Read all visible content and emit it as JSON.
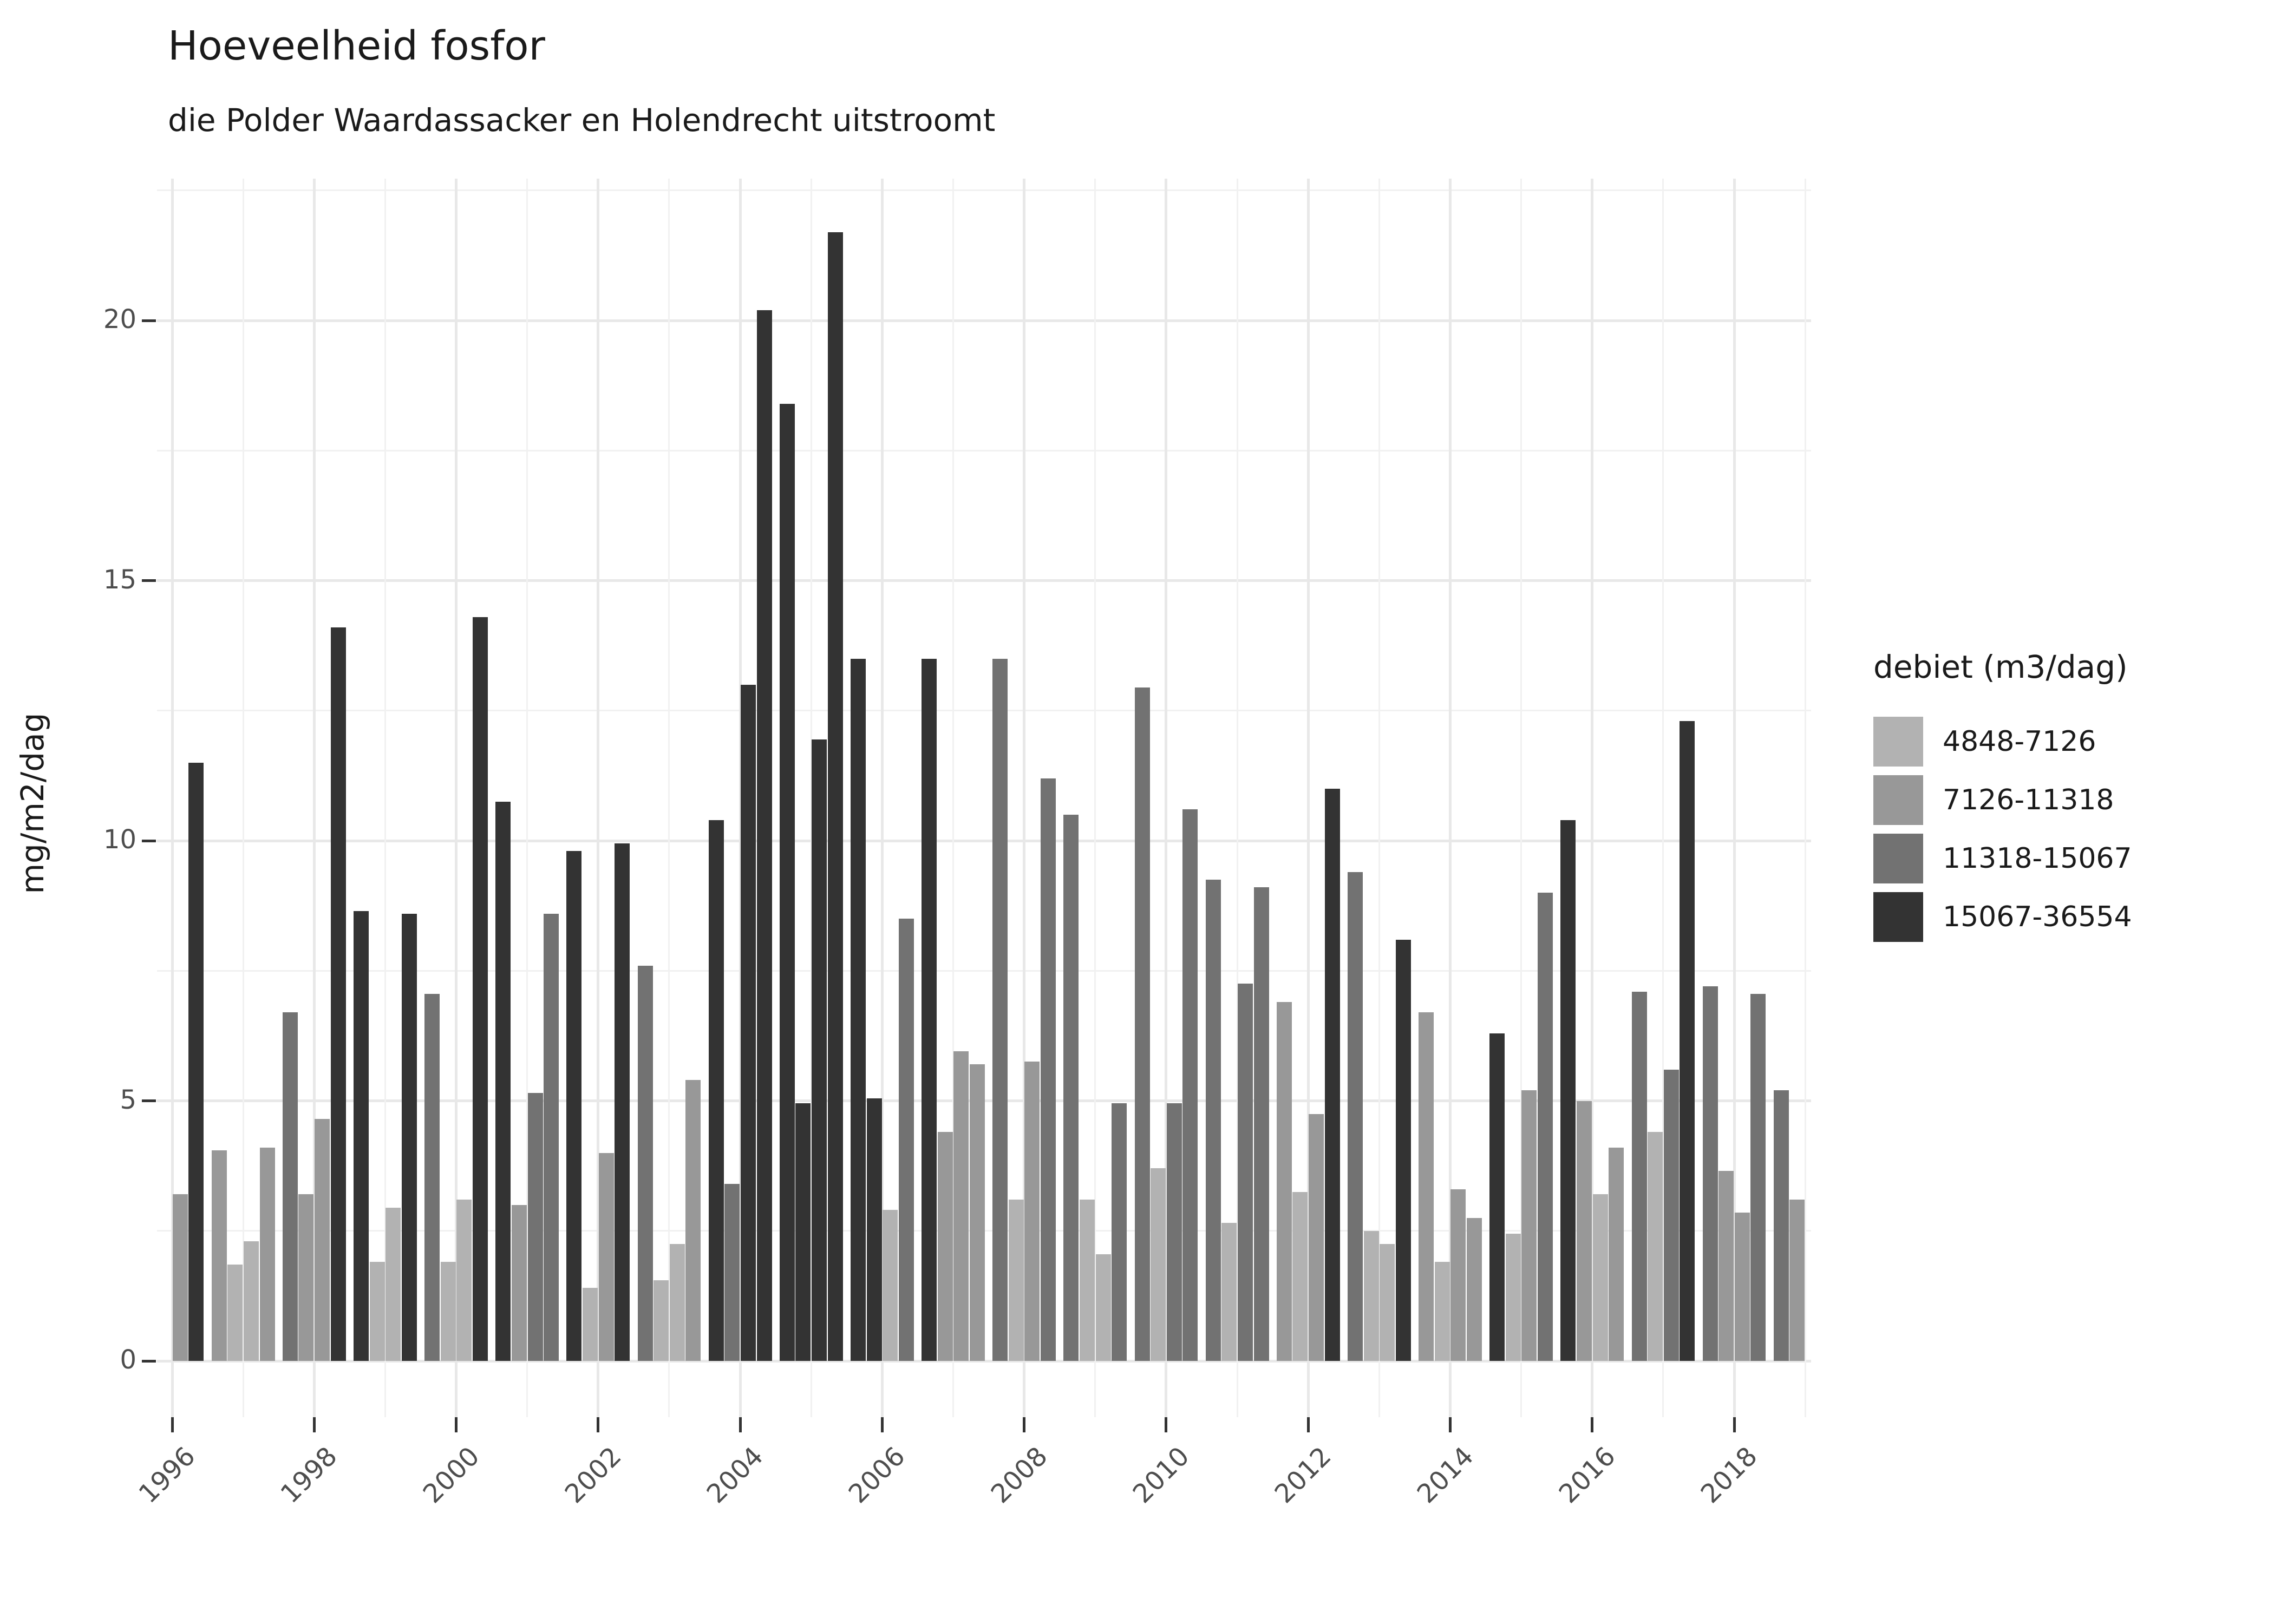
{
  "title": "Hoeveelheid fosfor",
  "subtitle": "die Polder Waardassacker en Holendrecht uitstroomt",
  "y_axis": {
    "label": "mg/m2/dag",
    "ticks": [
      0,
      5,
      10,
      15,
      20
    ],
    "minor_ticks": [
      2.5,
      7.5,
      12.5,
      17.5,
      22.5
    ],
    "range": [
      -1.1,
      22.8
    ]
  },
  "x_axis": {
    "tick_labels": [
      "1996",
      "1998",
      "2000",
      "2002",
      "2004",
      "2006",
      "2008",
      "2010",
      "2012",
      "2014",
      "2016",
      "2018"
    ],
    "tick_years": [
      1996,
      1998,
      2000,
      2002,
      2004,
      2006,
      2008,
      2010,
      2012,
      2014,
      2016,
      2018
    ],
    "minor_years": [
      1997,
      1999,
      2001,
      2003,
      2005,
      2007,
      2009,
      2011,
      2013,
      2015,
      2017,
      2019
    ]
  },
  "legend": {
    "title": "debiet (m3/dag)",
    "items": [
      {
        "label": "4848-7126",
        "color": "#b2b2b2"
      },
      {
        "label": "7126-11318",
        "color": "#989898"
      },
      {
        "label": "11318-15067",
        "color": "#727272"
      },
      {
        "label": "15067-36554",
        "color": "#333333"
      }
    ]
  },
  "chart_data": {
    "type": "bar",
    "title": "Hoeveelheid fosfor",
    "subtitle": "die Polder Waardassacker en Holendrecht uitstroomt",
    "xlabel": "",
    "ylabel": "mg/m2/dag",
    "ylim": [
      0,
      22.8
    ],
    "grid": true,
    "legend_position": "right",
    "group_by": "quarter (4 bars per year)",
    "d_levels": [
      "4848-7126",
      "7126-11318",
      "11318-15067",
      "15067-36554"
    ],
    "bars": [
      {
        "y": 1996,
        "q": 3,
        "v": 3.2,
        "d": 2
      },
      {
        "y": 1996,
        "q": 4,
        "v": 11.5,
        "d": 4
      },
      {
        "y": 1997,
        "q": 1,
        "v": 4.05,
        "d": 2
      },
      {
        "y": 1997,
        "q": 2,
        "v": 1.85,
        "d": 1
      },
      {
        "y": 1997,
        "q": 3,
        "v": 2.3,
        "d": 1
      },
      {
        "y": 1997,
        "q": 4,
        "v": 4.1,
        "d": 2
      },
      {
        "y": 1998,
        "q": 1,
        "v": 6.7,
        "d": 3
      },
      {
        "y": 1998,
        "q": 2,
        "v": 3.2,
        "d": 2
      },
      {
        "y": 1998,
        "q": 3,
        "v": 4.65,
        "d": 2
      },
      {
        "y": 1998,
        "q": 4,
        "v": 14.1,
        "d": 4
      },
      {
        "y": 1999,
        "q": 1,
        "v": 8.65,
        "d": 4
      },
      {
        "y": 1999,
        "q": 2,
        "v": 1.9,
        "d": 1
      },
      {
        "y": 1999,
        "q": 3,
        "v": 2.95,
        "d": 1
      },
      {
        "y": 1999,
        "q": 4,
        "v": 8.6,
        "d": 4
      },
      {
        "y": 2000,
        "q": 1,
        "v": 7.05,
        "d": 3
      },
      {
        "y": 2000,
        "q": 2,
        "v": 1.9,
        "d": 1
      },
      {
        "y": 2000,
        "q": 3,
        "v": 3.1,
        "d": 1
      },
      {
        "y": 2000,
        "q": 4,
        "v": 14.3,
        "d": 4
      },
      {
        "y": 2001,
        "q": 1,
        "v": 10.75,
        "d": 4
      },
      {
        "y": 2001,
        "q": 2,
        "v": 3.0,
        "d": 2
      },
      {
        "y": 2001,
        "q": 3,
        "v": 5.15,
        "d": 3
      },
      {
        "y": 2001,
        "q": 4,
        "v": 8.6,
        "d": 3
      },
      {
        "y": 2002,
        "q": 1,
        "v": 9.8,
        "d": 4
      },
      {
        "y": 2002,
        "q": 2,
        "v": 1.4,
        "d": 1
      },
      {
        "y": 2002,
        "q": 3,
        "v": 4.0,
        "d": 2
      },
      {
        "y": 2002,
        "q": 4,
        "v": 9.95,
        "d": 4
      },
      {
        "y": 2003,
        "q": 1,
        "v": 7.6,
        "d": 3
      },
      {
        "y": 2003,
        "q": 2,
        "v": 1.55,
        "d": 1
      },
      {
        "y": 2003,
        "q": 3,
        "v": 2.25,
        "d": 1
      },
      {
        "y": 2003,
        "q": 4,
        "v": 5.4,
        "d": 2
      },
      {
        "y": 2004,
        "q": 1,
        "v": 10.4,
        "d": 4
      },
      {
        "y": 2004,
        "q": 2,
        "v": 3.4,
        "d": 3
      },
      {
        "y": 2004,
        "q": 3,
        "v": 13.0,
        "d": 4
      },
      {
        "y": 2004,
        "q": 4,
        "v": 20.2,
        "d": 4
      },
      {
        "y": 2005,
        "q": 1,
        "v": 18.4,
        "d": 4
      },
      {
        "y": 2005,
        "q": 2,
        "v": 4.95,
        "d": 4
      },
      {
        "y": 2005,
        "q": 3,
        "v": 11.95,
        "d": 4
      },
      {
        "y": 2005,
        "q": 4,
        "v": 21.7,
        "d": 4
      },
      {
        "y": 2006,
        "q": 1,
        "v": 13.5,
        "d": 4
      },
      {
        "y": 2006,
        "q": 2,
        "v": 5.05,
        "d": 4
      },
      {
        "y": 2006,
        "q": 3,
        "v": 2.9,
        "d": 1
      },
      {
        "y": 2006,
        "q": 4,
        "v": 8.5,
        "d": 3
      },
      {
        "y": 2007,
        "q": 1,
        "v": 13.5,
        "d": 4
      },
      {
        "y": 2007,
        "q": 2,
        "v": 4.4,
        "d": 2
      },
      {
        "y": 2007,
        "q": 3,
        "v": 5.95,
        "d": 2
      },
      {
        "y": 2007,
        "q": 4,
        "v": 5.7,
        "d": 2
      },
      {
        "y": 2008,
        "q": 1,
        "v": 13.5,
        "d": 3
      },
      {
        "y": 2008,
        "q": 2,
        "v": 3.1,
        "d": 1
      },
      {
        "y": 2008,
        "q": 3,
        "v": 5.75,
        "d": 2
      },
      {
        "y": 2008,
        "q": 4,
        "v": 11.2,
        "d": 3
      },
      {
        "y": 2009,
        "q": 1,
        "v": 10.5,
        "d": 3
      },
      {
        "y": 2009,
        "q": 2,
        "v": 3.1,
        "d": 1
      },
      {
        "y": 2009,
        "q": 3,
        "v": 2.05,
        "d": 1
      },
      {
        "y": 2009,
        "q": 4,
        "v": 4.95,
        "d": 3
      },
      {
        "y": 2010,
        "q": 1,
        "v": 12.95,
        "d": 3
      },
      {
        "y": 2010,
        "q": 2,
        "v": 3.7,
        "d": 1
      },
      {
        "y": 2010,
        "q": 3,
        "v": 4.95,
        "d": 3
      },
      {
        "y": 2010,
        "q": 4,
        "v": 10.6,
        "d": 3
      },
      {
        "y": 2011,
        "q": 1,
        "v": 9.25,
        "d": 3
      },
      {
        "y": 2011,
        "q": 2,
        "v": 2.65,
        "d": 1
      },
      {
        "y": 2011,
        "q": 3,
        "v": 7.25,
        "d": 3
      },
      {
        "y": 2011,
        "q": 4,
        "v": 9.1,
        "d": 3
      },
      {
        "y": 2012,
        "q": 1,
        "v": 6.9,
        "d": 2
      },
      {
        "y": 2012,
        "q": 2,
        "v": 3.25,
        "d": 1
      },
      {
        "y": 2012,
        "q": 3,
        "v": 4.75,
        "d": 2
      },
      {
        "y": 2012,
        "q": 4,
        "v": 11.0,
        "d": 4
      },
      {
        "y": 2013,
        "q": 1,
        "v": 9.4,
        "d": 3
      },
      {
        "y": 2013,
        "q": 2,
        "v": 2.5,
        "d": 1
      },
      {
        "y": 2013,
        "q": 3,
        "v": 2.25,
        "d": 1
      },
      {
        "y": 2013,
        "q": 4,
        "v": 8.1,
        "d": 4
      },
      {
        "y": 2014,
        "q": 1,
        "v": 6.7,
        "d": 2
      },
      {
        "y": 2014,
        "q": 2,
        "v": 1.9,
        "d": 1
      },
      {
        "y": 2014,
        "q": 3,
        "v": 3.3,
        "d": 2
      },
      {
        "y": 2014,
        "q": 4,
        "v": 2.75,
        "d": 2
      },
      {
        "y": 2015,
        "q": 1,
        "v": 6.3,
        "d": 4
      },
      {
        "y": 2015,
        "q": 2,
        "v": 2.45,
        "d": 1
      },
      {
        "y": 2015,
        "q": 3,
        "v": 5.2,
        "d": 2
      },
      {
        "y": 2015,
        "q": 4,
        "v": 9.0,
        "d": 3
      },
      {
        "y": 2016,
        "q": 1,
        "v": 10.4,
        "d": 4
      },
      {
        "y": 2016,
        "q": 2,
        "v": 5.0,
        "d": 2
      },
      {
        "y": 2016,
        "q": 3,
        "v": 3.2,
        "d": 1
      },
      {
        "y": 2016,
        "q": 4,
        "v": 4.1,
        "d": 2
      },
      {
        "y": 2017,
        "q": 1,
        "v": 7.1,
        "d": 3
      },
      {
        "y": 2017,
        "q": 2,
        "v": 4.4,
        "d": 1
      },
      {
        "y": 2017,
        "q": 3,
        "v": 5.6,
        "d": 3
      },
      {
        "y": 2017,
        "q": 4,
        "v": 12.3,
        "d": 4
      },
      {
        "y": 2018,
        "q": 1,
        "v": 7.2,
        "d": 3
      },
      {
        "y": 2018,
        "q": 2,
        "v": 3.65,
        "d": 2
      },
      {
        "y": 2018,
        "q": 3,
        "v": 2.85,
        "d": 2
      },
      {
        "y": 2018,
        "q": 4,
        "v": 7.05,
        "d": 3
      },
      {
        "y": 2019,
        "q": 1,
        "v": 5.2,
        "d": 3
      },
      {
        "y": 2019,
        "q": 2,
        "v": 3.1,
        "d": 2
      }
    ]
  }
}
